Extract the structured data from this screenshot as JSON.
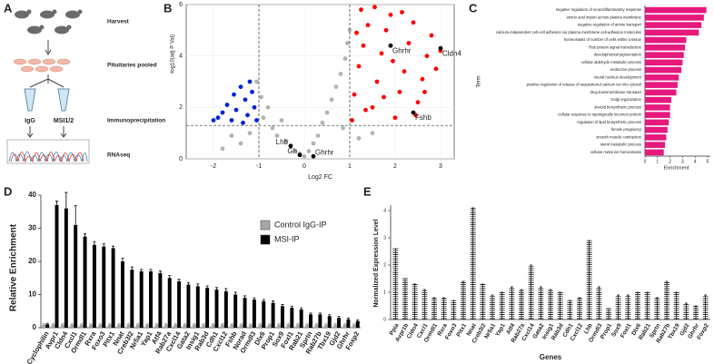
{
  "panel_labels": [
    "A",
    "B",
    "C",
    "D",
    "E"
  ],
  "diagram": {
    "steps": [
      "Harvest",
      "Pituitaries pooled",
      "Immunoprecipitation",
      "RNAseq"
    ],
    "tubes": [
      "IgG",
      "MSI1/2"
    ]
  },
  "chart_data": [
    {
      "type": "scatter",
      "xlabel": "Log2 FC",
      "ylabel": "-log10(adj P Val)",
      "xlim": [
        -2.6,
        3.3
      ],
      "ylim": [
        0,
        6
      ],
      "xticks": [
        -2,
        -1,
        0,
        1,
        2,
        3
      ],
      "yticks": [
        0,
        2,
        4,
        6
      ],
      "vlines": [
        -1,
        1
      ],
      "hline": 1.3,
      "grid": true,
      "series": [
        {
          "color": "#b3b3b3",
          "x": [
            -1.05,
            -0.95,
            -0.9,
            -0.8,
            -0.7,
            -0.6,
            -0.5,
            -0.4,
            -0.3,
            -0.2,
            -0.1,
            0.0,
            0.1,
            0.2,
            0.3,
            0.4,
            0.5,
            0.6,
            0.7,
            0.8,
            0.9,
            0.95,
            1.0,
            -1.2,
            -1.4,
            -1.6,
            -1.8,
            1.2,
            1.5,
            0.85
          ],
          "y": [
            3.0,
            2.4,
            1.6,
            2.0,
            1.2,
            0.9,
            1.5,
            0.7,
            0.5,
            0.3,
            0.2,
            0.1,
            0.3,
            0.6,
            0.9,
            1.4,
            1.8,
            2.3,
            2.8,
            3.3,
            3.9,
            4.5,
            5.0,
            1.0,
            0.6,
            0.9,
            0.4,
            0.8,
            1.0,
            1.2
          ]
        },
        {
          "color": "#ff0000",
          "x": [
            1.05,
            1.1,
            1.2,
            1.3,
            1.4,
            1.5,
            1.6,
            1.7,
            1.8,
            1.9,
            2.0,
            2.1,
            2.2,
            2.3,
            2.4,
            2.5,
            2.6,
            2.7,
            2.8,
            2.9,
            3.0,
            1.25,
            1.55,
            2.15,
            1.35,
            1.75,
            2.45,
            2.65,
            1.15,
            1.95
          ],
          "y": [
            1.5,
            2.5,
            3.6,
            4.4,
            5.2,
            2.0,
            3.0,
            4.1,
            5.0,
            5.6,
            1.6,
            2.6,
            3.4,
            4.5,
            5.3,
            2.2,
            3.1,
            4.0,
            4.8,
            3.5,
            4.2,
            5.8,
            5.9,
            5.7,
            1.9,
            2.4,
            1.7,
            2.6,
            4.9,
            3.8
          ]
        },
        {
          "color": "#0022dd",
          "x": [
            -1.05,
            -1.1,
            -1.15,
            -1.2,
            -1.25,
            -1.3,
            -1.35,
            -1.4,
            -1.5,
            -1.55,
            -1.6,
            -1.7,
            -1.8,
            -2.0,
            -1.9
          ],
          "y": [
            1.5,
            2.0,
            2.6,
            3.0,
            1.7,
            2.3,
            1.4,
            2.8,
            1.9,
            2.5,
            1.5,
            2.1,
            1.8,
            1.5,
            1.6
          ]
        },
        {
          "color": "#000000",
          "x": [
            3.0,
            1.9,
            2.4,
            -0.3,
            -0.1,
            0.2
          ],
          "y": [
            4.3,
            4.4,
            1.8,
            0.5,
            0.15,
            0.1
          ],
          "labels": [
            "Cldn4",
            "Ghrhr",
            "Fshb",
            "Lhb",
            "Gh",
            "Ghrhr"
          ]
        }
      ]
    },
    {
      "type": "hbar",
      "xlabel": "Enrichment",
      "ylabel": "Term",
      "color": "#e6197d",
      "xlim": [
        0,
        5
      ],
      "xticks": [
        0,
        1,
        2,
        3,
        4,
        5
      ],
      "categories": [
        "negative regulation of neuroinflammatory response",
        "amino acid import across plasma membrane",
        "negative regulation of amine transport",
        "calcium-independent cell-cell adhesion via plasma membrane cell-adhesion molecules",
        "homeostasis of number of cells within a tissue",
        "Rab protein signal transduction",
        "developmental pigmentation",
        "cellular aldehyde metabolic process",
        "endocrine process",
        "neural nucleus development",
        "positive regulation of release of sequestered calcium ion into cytosol",
        "drug transmembrane transport",
        "Golgi organization",
        "steroid biosynthetic process",
        "cellular response to topologically incorrect protein",
        "regulation of lipid biosynthetic process",
        "female pregnancy",
        "smooth muscle contraction",
        "sterol metabolic process",
        "cellular metal ion homeostasis"
      ],
      "values": [
        4.9,
        4.7,
        4.5,
        4.3,
        3.3,
        3.2,
        3.1,
        3.0,
        2.9,
        2.7,
        2.6,
        2.5,
        2.1,
        2.0,
        2.0,
        1.9,
        1.8,
        1.7,
        1.6,
        1.5
      ]
    },
    {
      "type": "grouped_bar",
      "ylabel": "Relative Enrichment",
      "legend": "upper right",
      "ylim": [
        0,
        40
      ],
      "yticks": [
        0,
        10,
        20,
        30,
        40
      ],
      "categories": [
        "Cyclophilin",
        "Avpr1",
        "Cldn4",
        "Cxcl1",
        "Ormdl1",
        "Rxra",
        "Foxo3",
        "Pitx1",
        "Nnat",
        "Creb3l2",
        "Nr5a1",
        "Yap1",
        "Atf4",
        "Rab27a",
        "Cxcl14",
        "Gata2",
        "Insig1",
        "Rab3d",
        "Cdh1",
        "Cxcl12",
        "Fshb",
        "Norad",
        "Ormdl3",
        "Dlx6",
        "Prop1",
        "Sox9",
        "Foxl1",
        "Rab21",
        "Sprtn",
        "Rab27b",
        "Tbx19",
        "Gjd2",
        "Ghrhr",
        "Foxp2"
      ],
      "series": [
        {
          "name": "Control IgG-IP",
          "color": "#a6a6a6",
          "values": [
            1,
            1,
            1,
            1,
            1,
            1,
            1,
            1,
            1,
            1,
            1,
            1,
            1,
            1,
            1,
            1,
            1,
            1,
            1,
            1,
            1,
            1,
            1,
            1,
            1,
            1,
            1,
            1,
            1,
            1,
            1,
            1,
            1,
            1
          ],
          "errors": [
            0.3,
            0.3,
            0.3,
            0.3,
            0.3,
            0.3,
            0.3,
            0.3,
            0.3,
            0.3,
            0.3,
            0.3,
            0.3,
            0.3,
            0.3,
            0.3,
            0.3,
            0.3,
            0.3,
            0.3,
            0.3,
            0.3,
            0.3,
            0.3,
            0.3,
            0.3,
            0.3,
            0.3,
            0.3,
            0.3,
            0.3,
            0.3,
            0.3,
            0.3
          ]
        },
        {
          "name": "MSI-IP",
          "color": "#000000",
          "values": [
            1,
            37,
            36,
            31,
            27.5,
            25,
            24.5,
            24,
            20,
            17.5,
            17,
            17,
            16.5,
            15,
            14,
            13,
            12.5,
            12,
            11.5,
            11,
            10,
            9,
            8.5,
            8,
            7.5,
            6.5,
            6,
            5.5,
            4,
            4,
            3.5,
            3,
            2.5,
            2
          ],
          "errors": [
            0.3,
            1.2,
            4.8,
            5.8,
            0.8,
            1.0,
            0.8,
            0.6,
            1.0,
            0.8,
            0.6,
            0.6,
            0.6,
            0.7,
            0.6,
            0.6,
            0.7,
            0.6,
            0.6,
            0.8,
            0.7,
            0.6,
            0.5,
            0.5,
            0.6,
            0.5,
            0.5,
            0.5,
            0.4,
            0.4,
            0.4,
            0.4,
            0.4,
            0.4
          ]
        }
      ]
    },
    {
      "type": "dot_stack",
      "xlabel": "Genes",
      "ylabel": "Normalized Expression Level",
      "ylim": [
        0,
        4.2
      ],
      "yticks": [
        0,
        1,
        2,
        3,
        4
      ],
      "categories": [
        "Ppia",
        "Avpr1b",
        "Cldn4",
        "Cxcl1",
        "Ormdl1",
        "Rxra",
        "Foxo3",
        "Pitx1",
        "Nnat",
        "Creb3l2",
        "Nr5a1",
        "Yap1",
        "Atf4",
        "Rab27a",
        "Cxcl14",
        "Gata2",
        "Insig1",
        "Rab3d",
        "Cdh1",
        "Cxcl12",
        "Lhb",
        "Ormdl3",
        "Prop1",
        "Sox9",
        "Foxl1",
        "Dlx6",
        "Rab21",
        "Sprtn",
        "Rab27b",
        "Tbx19",
        "Gjd2",
        "Ghrhr",
        "Foxp2"
      ],
      "values": [
        2.6,
        1.5,
        1.3,
        1.1,
        0.8,
        0.8,
        0.7,
        1.4,
        4.1,
        1.3,
        0.9,
        1.0,
        1.2,
        1.1,
        2.0,
        1.2,
        1.1,
        1.0,
        0.7,
        0.8,
        2.9,
        1.2,
        0.4,
        0.9,
        0.9,
        1.0,
        1.0,
        0.8,
        1.4,
        1.0,
        0.6,
        0.5,
        0.9
      ]
    }
  ]
}
